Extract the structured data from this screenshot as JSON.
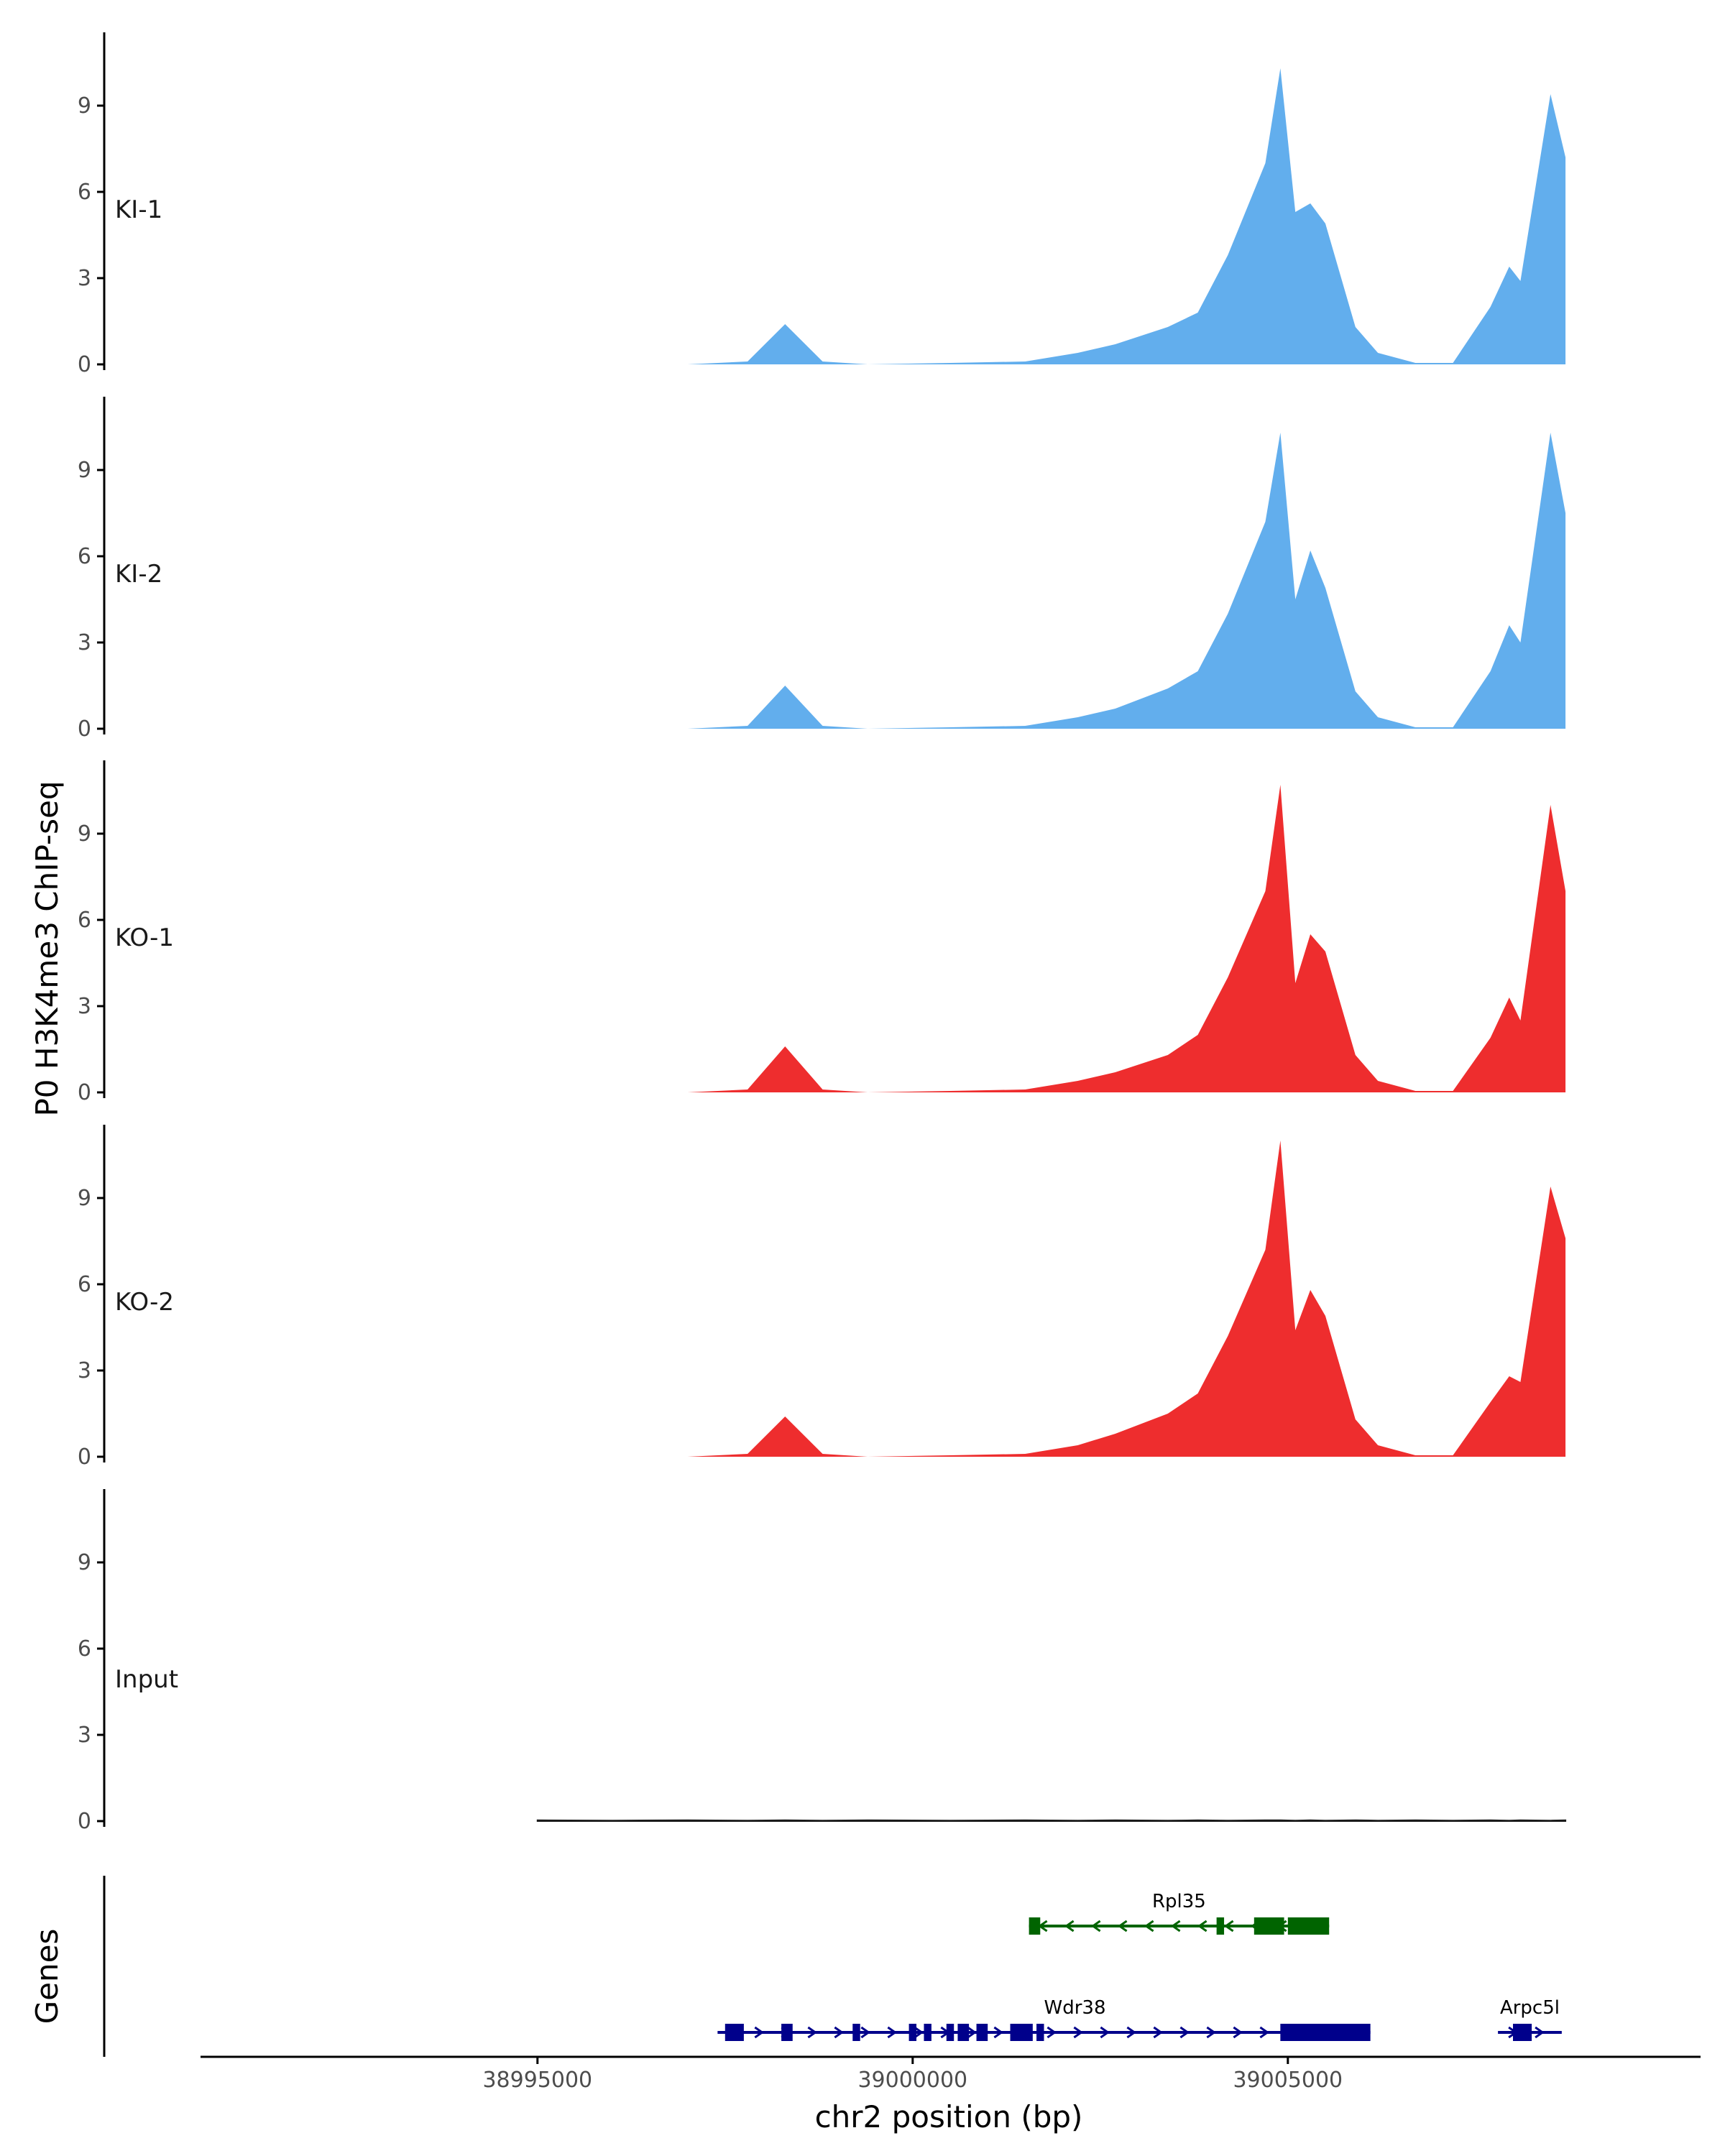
{
  "chart_data": {
    "type": "area",
    "title": "",
    "xlabel": "chr2 position (bp)",
    "ylabel": "P0 H3K4me3 ChIP-seq",
    "genes_label": "Genes",
    "xlim": [
      38990500,
      39010500
    ],
    "ylim": [
      0,
      11.7
    ],
    "x_ticks": [
      38995000,
      39000000,
      39005000
    ],
    "x_tick_labels": [
      "38995000",
      "39000000",
      "39005000"
    ],
    "y_ticks": [
      0,
      3,
      6,
      9
    ],
    "y_tick_labels": [
      "0",
      "3",
      "6",
      "9"
    ],
    "grid": false,
    "x": [
      38995000,
      38996000,
      38997000,
      38997800,
      38998300,
      38998800,
      38999400,
      39000500,
      39001500,
      39002200,
      39002700,
      39003400,
      39003800,
      39004200,
      39004700,
      39004900,
      39005100,
      39005300,
      39005500,
      39005900,
      39006200,
      39006700,
      39007200,
      39007700,
      39007950,
      39008100,
      39008500,
      39008700
    ],
    "series": [
      {
        "name": "KI-1",
        "color": "#62aeed",
        "values": [
          0,
          0,
          0,
          0.1,
          1.4,
          0.1,
          0,
          0.05,
          0.1,
          0.4,
          0.7,
          1.3,
          1.8,
          3.8,
          7.0,
          10.3,
          5.3,
          5.6,
          4.9,
          1.3,
          0.4,
          0.05,
          0.05,
          2.0,
          3.4,
          2.9,
          9.4,
          7.2
        ]
      },
      {
        "name": "KI-2",
        "color": "#62aeed",
        "values": [
          0,
          0,
          0,
          0.1,
          1.5,
          0.1,
          0,
          0.05,
          0.1,
          0.4,
          0.7,
          1.4,
          2.0,
          4.0,
          7.2,
          10.3,
          4.5,
          6.2,
          4.9,
          1.3,
          0.4,
          0.05,
          0.05,
          2.0,
          3.6,
          3.0,
          10.3,
          7.5
        ]
      },
      {
        "name": "KO-1",
        "color": "#ee2d2e",
        "values": [
          0,
          0,
          0,
          0.1,
          1.6,
          0.1,
          0,
          0.05,
          0.1,
          0.4,
          0.7,
          1.3,
          2.0,
          4.0,
          7.0,
          10.7,
          3.8,
          5.5,
          4.9,
          1.3,
          0.4,
          0.05,
          0.05,
          1.9,
          3.3,
          2.5,
          10.0,
          7.0
        ]
      },
      {
        "name": "KO-2",
        "color": "#ee2d2e",
        "values": [
          0,
          0,
          0,
          0.1,
          1.4,
          0.1,
          0,
          0.05,
          0.1,
          0.4,
          0.8,
          1.5,
          2.2,
          4.2,
          7.2,
          11.0,
          4.4,
          5.8,
          4.9,
          1.3,
          0.4,
          0.05,
          0.05,
          1.9,
          2.8,
          2.6,
          9.4,
          7.6
        ]
      },
      {
        "name": "Input",
        "color": "#1a1a1a",
        "values": [
          0.03,
          0.02,
          0.03,
          0.02,
          0.03,
          0.02,
          0.03,
          0.02,
          0.03,
          0.02,
          0.03,
          0.02,
          0.03,
          0.02,
          0.03,
          0.03,
          0.02,
          0.03,
          0.02,
          0.03,
          0.02,
          0.03,
          0.02,
          0.03,
          0.02,
          0.03,
          0.02,
          0.03
        ]
      }
    ],
    "genes": [
      {
        "name": "Rpl35",
        "strand": "-",
        "row": 1,
        "color": "#006400",
        "start": 39001550,
        "end": 39005550,
        "exons": [
          [
            39001550,
            39001700
          ],
          [
            39004050,
            39004150
          ],
          [
            39004550,
            39004950
          ],
          [
            39005000,
            39005550
          ]
        ]
      },
      {
        "name": "Wdr38",
        "strand": "+",
        "row": 2,
        "color": "#00008b",
        "start": 38997400,
        "end": 39006100,
        "exons": [
          [
            38997500,
            38997750
          ],
          [
            38998250,
            38998400
          ],
          [
            38999200,
            38999300
          ],
          [
            38999950,
            39000050
          ],
          [
            39000150,
            39000250
          ],
          [
            39000450,
            39000550
          ],
          [
            39000600,
            39000750
          ],
          [
            39000850,
            39001000
          ],
          [
            39001300,
            39001600
          ],
          [
            39001650,
            39001750
          ],
          [
            39004900,
            39006100
          ]
        ]
      },
      {
        "name": "Arpc5l",
        "strand": "+",
        "row": 2,
        "color": "#00008b",
        "start": 39007800,
        "end": 39008650,
        "exons": [
          [
            39008000,
            39008250
          ]
        ]
      }
    ]
  }
}
